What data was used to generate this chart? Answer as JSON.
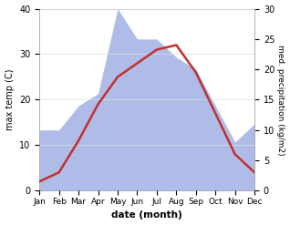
{
  "months": [
    "Jan",
    "Feb",
    "Mar",
    "Apr",
    "May",
    "Jun",
    "Jul",
    "Aug",
    "Sep",
    "Oct",
    "Nov",
    "Dec"
  ],
  "temp": [
    2,
    4,
    11,
    19,
    25,
    28,
    31,
    32,
    26,
    17,
    8,
    4
  ],
  "precip": [
    10,
    10,
    14,
    16,
    30,
    25,
    25,
    22,
    20,
    14,
    8,
    11
  ],
  "temp_color": "#c03030",
  "precip_color": "#b0bce8",
  "ylabel_left": "max temp (C)",
  "ylabel_right": "med. precipitation (kg/m2)",
  "xlabel": "date (month)",
  "ylim_left": [
    0,
    40
  ],
  "ylim_right": [
    0,
    30
  ],
  "bg_color": "#ffffff"
}
